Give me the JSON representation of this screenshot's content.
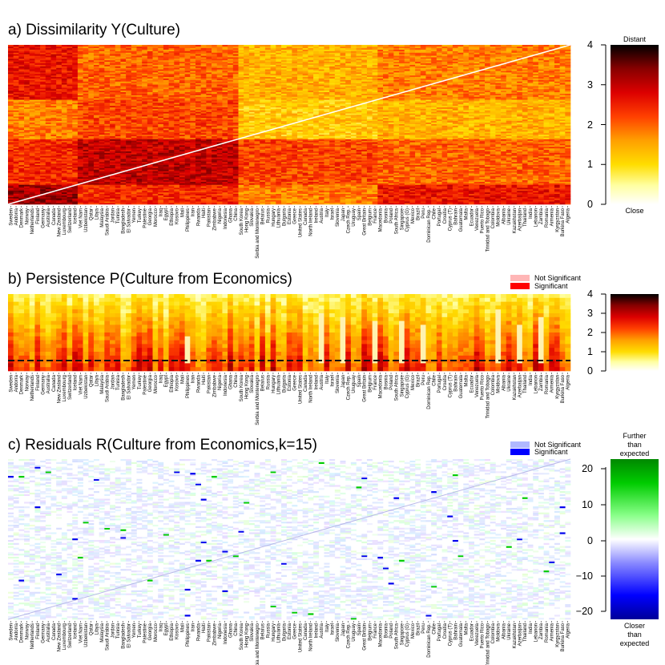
{
  "countries": [
    "Sweden",
    "Andorra",
    "Denmark",
    "Norway",
    "Netherlands",
    "Finland",
    "Germany",
    "Australia",
    "Canada",
    "New Zealand",
    "Luxembourg",
    "Switzerland",
    "Iceland",
    "Viet Nam",
    "Uzbekistan",
    "Qatar",
    "Libya",
    "Malaysia",
    "Saudi Arabia",
    "Jordan",
    "Tunisia",
    "Bangladesh",
    "El Salvador",
    "Yemen",
    "Turkey",
    "Palestine",
    "Georgia",
    "Morocco",
    "Iraq",
    "Egypt",
    "Ethiopia",
    "Kosovo",
    "Mali",
    "Philippines",
    "Iran",
    "Rwanda",
    "Haiti",
    "Pakistan",
    "Zimbabwe",
    "Nigeria",
    "Indonesia",
    "Ghana",
    "China",
    "South Korea",
    "Hong Kong",
    "Slovakia",
    "Serbia and Montenegro",
    "Belarus",
    "Russia",
    "Hungary",
    "Lithuania",
    "Bulgaria",
    "Estonia",
    "Greece",
    "United States",
    "Canada",
    "North Ireland",
    "Ireland",
    "Austria",
    "Italy",
    "Israel",
    "Slovenia",
    "Japan",
    "Czech Rep.",
    "Uruguay",
    "Spain",
    "Great Britain",
    "Belgium",
    "France",
    "Macedonia",
    "Bosnia",
    "Poland",
    "South Africa",
    "Singapore",
    "Cyprus (G)",
    "Mexico",
    "Brazil",
    "Peru",
    "Dominican Rep.",
    "Chile",
    "Portugal",
    "Croatia",
    "Cyprus (T)",
    "Bahrain",
    "Guatemala",
    "Malta",
    "Ecuador",
    "Venezuela",
    "Puerto Rico",
    "Trinidad and Tobago",
    "Colombia",
    "Moldova",
    "Albania",
    "Ukraine",
    "Kazakhstan",
    "Azerbaijan",
    "Thailand",
    "India",
    "Lebanon",
    "Zambia",
    "Romania",
    "Armenia",
    "Kyrgyzstan",
    "Burkina Faso",
    "Algeria"
  ],
  "chart_data": [
    {
      "type": "heatmap",
      "title": "a) Dissimilarity Y(Culture)",
      "colorbar": {
        "range": [
          0,
          4
        ],
        "ticks": [
          "0",
          "1",
          "2",
          "3",
          "4"
        ],
        "top_label": "Distant",
        "bottom_label": "Close",
        "colors": [
          "#ffffff",
          "#ffff99",
          "#ffd700",
          "#ff8c00",
          "#ff2200",
          "#cc0000",
          "#660000",
          "#000000"
        ]
      },
      "diagonal": "white line",
      "values": "country-by-country dissimilarity matrix (105 x 105)"
    },
    {
      "type": "heatmap",
      "title": "b) Persistence P(Culture from Economics)",
      "legend": [
        {
          "label": "Not Significant",
          "color": "#ffb6b6"
        },
        {
          "label": "Significant",
          "color": "#ff0000"
        }
      ],
      "colorbar": {
        "range": [
          0,
          4
        ],
        "ticks": [
          "0",
          "1",
          "2",
          "3",
          "4"
        ]
      },
      "reference_line": "dashed horizontal line"
    },
    {
      "type": "heatmap",
      "title": "c) Residuals R(Culture from Economics,k=15)",
      "legend": [
        {
          "label": "Not Significant",
          "color": "#b0b8ff"
        },
        {
          "label": "Significant",
          "color": "#0000ff"
        }
      ],
      "colorbar": {
        "range": [
          -20,
          20
        ],
        "ticks": [
          "20",
          "10",
          "0",
          "−10",
          "−20"
        ],
        "top_label": [
          "Further",
          "than",
          "expected"
        ],
        "bottom_label": [
          "Closer",
          "than",
          "expected"
        ],
        "colors": [
          "#0000aa",
          "#0000ff",
          "#8080ff",
          "#ffffff",
          "#80ff80",
          "#00cc00",
          "#008800"
        ]
      },
      "diagonal": "light blue line"
    }
  ]
}
